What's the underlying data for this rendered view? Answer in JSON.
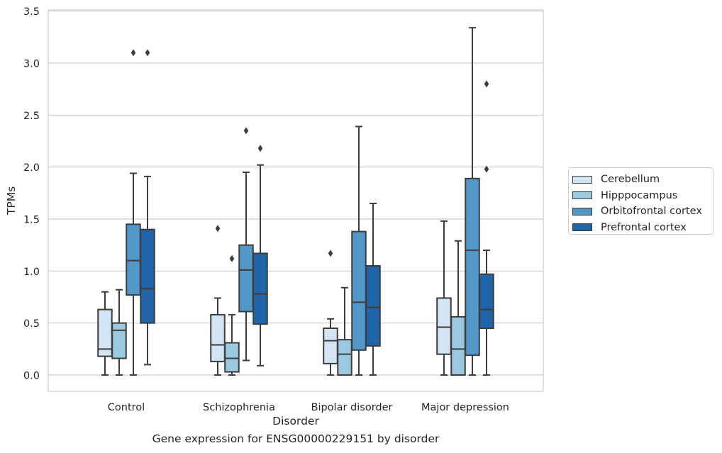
{
  "chart_data": {
    "type": "box",
    "xlabel": "Disorder",
    "ylabel": "TPMs",
    "caption": "Gene expression for ENSG00000229151 by disorder",
    "ylim": [
      -0.16,
      3.52
    ],
    "yticks": [
      "0.0",
      "0.5",
      "1.0",
      "1.5",
      "2.0",
      "2.5",
      "3.0",
      "3.5"
    ],
    "grid": "horizontal",
    "legend_position": "right",
    "categories": [
      "Control",
      "Schizophrenia",
      "Bipolar disorder",
      "Major depression"
    ],
    "series": [
      {
        "name": "Cerebellum",
        "color": "#d3e4f3",
        "boxes": [
          {
            "whisker_low": 0.0,
            "q1": 0.18,
            "median": 0.25,
            "q3": 0.63,
            "whisker_high": 0.8,
            "outliers": []
          },
          {
            "whisker_low": 0.0,
            "q1": 0.13,
            "median": 0.29,
            "q3": 0.58,
            "whisker_high": 0.74,
            "outliers": [
              1.41
            ]
          },
          {
            "whisker_low": 0.0,
            "q1": 0.11,
            "median": 0.33,
            "q3": 0.45,
            "whisker_high": 0.54,
            "outliers": [
              1.17
            ]
          },
          {
            "whisker_low": 0.0,
            "q1": 0.2,
            "median": 0.46,
            "q3": 0.74,
            "whisker_high": 1.48,
            "outliers": []
          }
        ]
      },
      {
        "name": "Hipppocampus",
        "color": "#9ac8e0",
        "boxes": [
          {
            "whisker_low": 0.0,
            "q1": 0.16,
            "median": 0.43,
            "q3": 0.5,
            "whisker_high": 0.82,
            "outliers": []
          },
          {
            "whisker_low": 0.0,
            "q1": 0.03,
            "median": 0.16,
            "q3": 0.31,
            "whisker_high": 0.58,
            "outliers": [
              1.12
            ]
          },
          {
            "whisker_low": 0.0,
            "q1": 0.0,
            "median": 0.2,
            "q3": 0.34,
            "whisker_high": 0.84,
            "outliers": []
          },
          {
            "whisker_low": 0.0,
            "q1": 0.0,
            "median": 0.25,
            "q3": 0.56,
            "whisker_high": 1.29,
            "outliers": []
          }
        ]
      },
      {
        "name": "Orbitofrontal cortex",
        "color": "#5198c9",
        "boxes": [
          {
            "whisker_low": 0.0,
            "q1": 0.77,
            "median": 1.1,
            "q3": 1.45,
            "whisker_high": 1.94,
            "outliers": [
              3.1
            ]
          },
          {
            "whisker_low": 0.14,
            "q1": 0.61,
            "median": 1.01,
            "q3": 1.25,
            "whisker_high": 1.95,
            "outliers": [
              2.35
            ]
          },
          {
            "whisker_low": 0.0,
            "q1": 0.24,
            "median": 0.7,
            "q3": 1.38,
            "whisker_high": 2.39,
            "outliers": []
          },
          {
            "whisker_low": 0.0,
            "q1": 0.19,
            "median": 1.2,
            "q3": 1.89,
            "whisker_high": 3.34,
            "outliers": []
          }
        ]
      },
      {
        "name": "Prefrontal cortex",
        "color": "#2064aa",
        "boxes": [
          {
            "whisker_low": 0.1,
            "q1": 0.5,
            "median": 0.83,
            "q3": 1.4,
            "whisker_high": 1.91,
            "outliers": [
              3.1
            ]
          },
          {
            "whisker_low": 0.09,
            "q1": 0.49,
            "median": 0.78,
            "q3": 1.17,
            "whisker_high": 2.02,
            "outliers": [
              2.18
            ]
          },
          {
            "whisker_low": 0.0,
            "q1": 0.28,
            "median": 0.65,
            "q3": 1.05,
            "whisker_high": 1.65,
            "outliers": []
          },
          {
            "whisker_low": 0.0,
            "q1": 0.45,
            "median": 0.63,
            "q3": 0.97,
            "whisker_high": 1.2,
            "outliers": [
              1.98,
              2.8
            ]
          }
        ]
      }
    ]
  }
}
